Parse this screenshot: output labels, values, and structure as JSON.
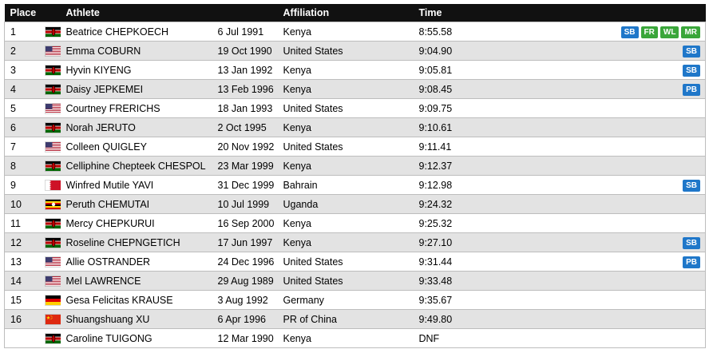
{
  "headers": {
    "place": "Place",
    "athlete": "Athlete",
    "dob": "",
    "affiliation": "Affiliation",
    "time": "Time"
  },
  "colors": {
    "header_bg": "#111111",
    "row_alt": "#e3e3e3",
    "badge_blue": "#1f77c9",
    "badge_green": "#3aa63a"
  },
  "rows": [
    {
      "place": "1",
      "name": "Beatrice CHEPKOECH",
      "dob": "6 Jul 1991",
      "affiliation": "Kenya",
      "flag": "kenya-flag",
      "time": "8:55.58",
      "records": [
        "SB",
        "FR",
        "WL",
        "MR"
      ]
    },
    {
      "place": "2",
      "name": "Emma COBURN",
      "dob": "19 Oct 1990",
      "affiliation": "United States",
      "flag": "usa-flag",
      "time": "9:04.90",
      "records": [
        "SB"
      ]
    },
    {
      "place": "3",
      "name": "Hyvin KIYENG",
      "dob": "13 Jan 1992",
      "affiliation": "Kenya",
      "flag": "kenya-flag",
      "time": "9:05.81",
      "records": [
        "SB"
      ]
    },
    {
      "place": "4",
      "name": "Daisy JEPKEMEI",
      "dob": "13 Feb 1996",
      "affiliation": "Kenya",
      "flag": "kenya-flag",
      "time": "9:08.45",
      "records": [
        "PB"
      ]
    },
    {
      "place": "5",
      "name": "Courtney FRERICHS",
      "dob": "18 Jan 1993",
      "affiliation": "United States",
      "flag": "usa-flag",
      "time": "9:09.75",
      "records": []
    },
    {
      "place": "6",
      "name": "Norah JERUTO",
      "dob": "2 Oct 1995",
      "affiliation": "Kenya",
      "flag": "kenya-flag",
      "time": "9:10.61",
      "records": []
    },
    {
      "place": "7",
      "name": "Colleen QUIGLEY",
      "dob": "20 Nov 1992",
      "affiliation": "United States",
      "flag": "usa-flag",
      "time": "9:11.41",
      "records": []
    },
    {
      "place": "8",
      "name": "Celliphine Chepteek CHESPOL",
      "dob": "23 Mar 1999",
      "affiliation": "Kenya",
      "flag": "kenya-flag",
      "time": "9:12.37",
      "records": []
    },
    {
      "place": "9",
      "name": "Winfred Mutile YAVI",
      "dob": "31 Dec 1999",
      "affiliation": "Bahrain",
      "flag": "bahrain-flag",
      "time": "9:12.98",
      "records": [
        "SB"
      ]
    },
    {
      "place": "10",
      "name": "Peruth CHEMUTAI",
      "dob": "10 Jul 1999",
      "affiliation": "Uganda",
      "flag": "uganda-flag",
      "time": "9:24.32",
      "records": []
    },
    {
      "place": "11",
      "name": "Mercy CHEPKURUI",
      "dob": "16 Sep 2000",
      "affiliation": "Kenya",
      "flag": "kenya-flag",
      "time": "9:25.32",
      "records": []
    },
    {
      "place": "12",
      "name": "Roseline CHEPNGETICH",
      "dob": "17 Jun 1997",
      "affiliation": "Kenya",
      "flag": "kenya-flag",
      "time": "9:27.10",
      "records": [
        "SB"
      ]
    },
    {
      "place": "13",
      "name": "Allie OSTRANDER",
      "dob": "24 Dec 1996",
      "affiliation": "United States",
      "flag": "usa-flag",
      "time": "9:31.44",
      "records": [
        "PB"
      ]
    },
    {
      "place": "14",
      "name": "Mel LAWRENCE",
      "dob": "29 Aug 1989",
      "affiliation": "United States",
      "flag": "usa-flag",
      "time": "9:33.48",
      "records": []
    },
    {
      "place": "15",
      "name": "Gesa Felicitas KRAUSE",
      "dob": "3 Aug 1992",
      "affiliation": "Germany",
      "flag": "germany-flag",
      "time": "9:35.67",
      "records": []
    },
    {
      "place": "16",
      "name": "Shuangshuang XU",
      "dob": "6 Apr 1996",
      "affiliation": "PR of China",
      "flag": "china-flag",
      "time": "9:49.80",
      "records": []
    },
    {
      "place": "",
      "name": "Caroline TUIGONG",
      "dob": "12 Mar 1990",
      "affiliation": "Kenya",
      "flag": "kenya-flag",
      "time": "DNF",
      "records": []
    }
  ]
}
